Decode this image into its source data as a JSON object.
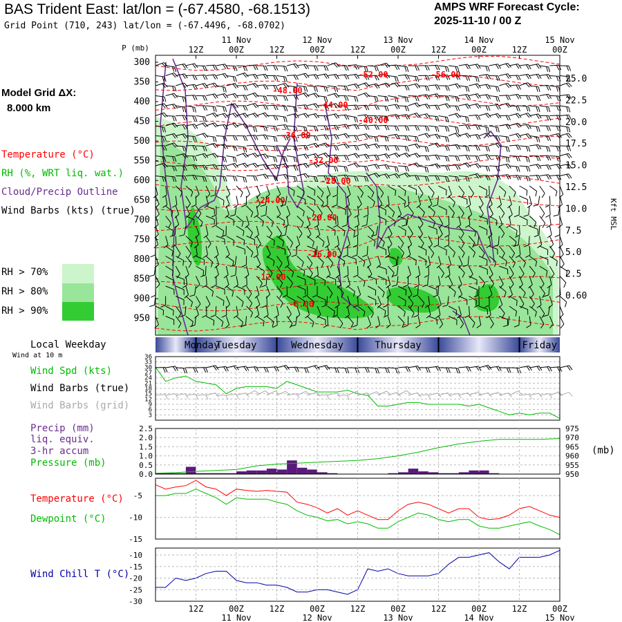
{
  "header": {
    "title": "BAS Trident East:  lat/lon = (-67.4580, -68.1513)",
    "grid_point": "Grid Point (710, 243) lat/lon = (-67.4496, -68.0702)",
    "cycle_label": "AMPS WRF Forecast Cycle:",
    "cycle_value": "2025-11-10 / 00  Z",
    "model_grid_label": "Model Grid ΔX:",
    "model_grid_value": "8.000 km"
  },
  "legend": {
    "temperature": "Temperature (°C)",
    "rh": "RH (%, WRT liq. wat.)",
    "cloud": "Cloud/Precip Outline",
    "wind_barbs": "Wind Barbs (kts) (true)",
    "rh70": "RH > 70%",
    "rh80": "RH > 80%",
    "rh90": "RH > 90%",
    "local_weekday": "Local Weekday",
    "wind10m": "Wind at 10 m",
    "wind_spd": "Wind Spd (kts)",
    "wind_barbs_true": "Wind Barbs (true)",
    "wind_barbs_grid": "Wind Barbs (grid)",
    "precip1": "Precip (mm)",
    "precip2": "liq. equiv.",
    "precip3": "3-hr accum",
    "pressure": "Pressure (mb)",
    "pressure_unit": "(mb)",
    "temp2": "Temperature (°C)",
    "dewpoint": "Dewpoint (°C)",
    "windchill": "Wind Chill T (°C)"
  },
  "colors": {
    "temperature": "#ff0000",
    "rh": "#00bb00",
    "cloud": "#6a2c8f",
    "windchill": "#0000aa",
    "grid_barbs": "#aaaaaa",
    "rh70": "#ccf5cc",
    "rh80": "#99e599",
    "rh90": "#33cc33",
    "precip": "#5a1a7a"
  },
  "chart_data": [
    {
      "type": "heatmap",
      "title": "Time-height cross section",
      "p_label": "P (mb)",
      "pressure_ticks": [
        "300",
        "350",
        "400",
        "450",
        "500",
        "550",
        "600",
        "650",
        "700",
        "750",
        "800",
        "850",
        "900",
        "950"
      ],
      "height_label": "Kft MSL",
      "height_ticks": [
        "25.0",
        "22.5",
        "20.0",
        "17.5",
        "15.0",
        "12.5",
        "10.0",
        "7.5",
        "5.0",
        "2.5",
        "0.60"
      ],
      "time_tick_labels": [
        "12Z",
        "00Z",
        "12Z",
        "00Z",
        "12Z",
        "00Z",
        "12Z",
        "00Z",
        "12Z",
        "00Z"
      ],
      "date_labels": [
        "11 Nov",
        "12 Nov",
        "13 Nov",
        "14 Nov",
        "15 Nov"
      ],
      "temperature_labels": [
        "-52.00",
        "-56.00",
        "-48.00",
        "-44.00",
        "-40.00",
        "-36.00",
        "-32.00",
        "-28.00",
        "-24.00",
        "-20.00",
        "-16.00",
        "-12.00",
        "-8.00"
      ],
      "weekdays": [
        "Monday",
        "Tuesday",
        "Wednesday",
        "Thursday",
        "Friday"
      ],
      "forecast_hours": [
        0,
        120
      ]
    },
    {
      "type": "line",
      "title": "Wind speed at 10 m",
      "y_ticks": [
        "36",
        "33",
        "30",
        "27",
        "24",
        "21",
        "18",
        "15",
        "12",
        "9",
        "6",
        "3"
      ],
      "x": [
        0,
        3,
        6,
        9,
        12,
        15,
        18,
        21,
        24,
        27,
        30,
        33,
        36,
        39,
        42,
        45,
        48,
        51,
        54,
        57,
        60,
        63,
        66,
        69,
        72,
        75,
        78,
        81,
        84,
        87,
        90,
        93,
        96,
        99,
        102,
        105,
        108,
        111,
        114,
        117,
        120
      ],
      "series": [
        {
          "name": "Wind Spd (kts)",
          "values": [
            30,
            22,
            24,
            25,
            22,
            21,
            20,
            15,
            18,
            19,
            19,
            19,
            18,
            22,
            20,
            18,
            16,
            16,
            16,
            17,
            15,
            14,
            8,
            8,
            9,
            10,
            10,
            9,
            9,
            9,
            9,
            8,
            9,
            7,
            5,
            3,
            4,
            3,
            4,
            4,
            1
          ]
        }
      ]
    },
    {
      "type": "bar",
      "title": "Precip and pressure",
      "y_ticks_left": [
        "2.5",
        "2.0",
        "1.5",
        "1.0",
        "0.5",
        "0.0"
      ],
      "y_ticks_right": [
        "975",
        "970",
        "965",
        "960",
        "955",
        "950"
      ],
      "precip_x": [
        3,
        6,
        9,
        12,
        15,
        18,
        21,
        24,
        27,
        30,
        33,
        36,
        39,
        42,
        45,
        48,
        51,
        54,
        57,
        60,
        63,
        66,
        69,
        72,
        75,
        78,
        81,
        84,
        87,
        90,
        93,
        96,
        99,
        102,
        105,
        108,
        111,
        114,
        117,
        120
      ],
      "precip_values": [
        0.05,
        0.05,
        0.05,
        0.4,
        0.05,
        0.05,
        0.05,
        0.05,
        0.15,
        0.2,
        0.2,
        0.3,
        0.25,
        0.75,
        0.35,
        0.25,
        0.1,
        0.05,
        0.02,
        0.02,
        0,
        0,
        0,
        0.05,
        0.1,
        0.3,
        0.15,
        0.1,
        0.05,
        0.05,
        0.1,
        0.2,
        0.2,
        0.05,
        0,
        0,
        0,
        0,
        0,
        0
      ],
      "pressure_x": [
        0,
        6,
        12,
        18,
        24,
        30,
        36,
        42,
        48,
        54,
        60,
        66,
        72,
        78,
        84,
        90,
        96,
        102,
        108,
        114,
        120
      ],
      "pressure_values": [
        950.5,
        950.8,
        951.5,
        952,
        952.5,
        954.5,
        955.5,
        956,
        956.5,
        957,
        957.5,
        958.5,
        960,
        962,
        964.5,
        966.5,
        968,
        969,
        969,
        969,
        969.5
      ]
    },
    {
      "type": "line",
      "title": "Temperature and Dewpoint",
      "y_ticks": [
        "-5",
        "-10",
        "-15"
      ],
      "x": [
        0,
        3,
        6,
        9,
        12,
        15,
        18,
        21,
        24,
        27,
        30,
        33,
        36,
        39,
        42,
        45,
        48,
        51,
        54,
        57,
        60,
        63,
        66,
        69,
        72,
        75,
        78,
        81,
        84,
        87,
        90,
        93,
        96,
        99,
        102,
        105,
        108,
        111,
        114,
        117,
        120
      ],
      "series": [
        {
          "name": "Temperature (°C)",
          "values": [
            -2.5,
            -3.5,
            -3,
            -2.7,
            -1.5,
            -3,
            -3.5,
            -5,
            -3.5,
            -3.8,
            -4,
            -3.8,
            -4,
            -4.2,
            -6.5,
            -7,
            -7.8,
            -9,
            -8,
            -9.5,
            -8.5,
            -9.5,
            -10.5,
            -10.5,
            -8.5,
            -7,
            -6.5,
            -7,
            -8,
            -9,
            -8,
            -8,
            -10,
            -10.5,
            -10.3,
            -9.5,
            -8,
            -7.5,
            -8.5,
            -9.5,
            -10
          ]
        },
        {
          "name": "Dewpoint (°C)",
          "values": [
            -5,
            -5,
            -4.5,
            -4.5,
            -3.5,
            -4.5,
            -5.5,
            -7,
            -5.5,
            -5.8,
            -5.8,
            -5.8,
            -6.5,
            -7,
            -8.5,
            -9.5,
            -10,
            -10.8,
            -10.5,
            -11.5,
            -11,
            -11.5,
            -12.5,
            -12.5,
            -11,
            -10,
            -9,
            -9.5,
            -10.5,
            -11,
            -10.5,
            -10.5,
            -12,
            -12.5,
            -12.5,
            -12,
            -11.5,
            -11,
            -12,
            -12.8,
            -14
          ]
        }
      ]
    },
    {
      "type": "line",
      "title": "Wind Chill",
      "y_ticks": [
        "-10",
        "-15",
        "-20",
        "-25",
        "-30"
      ],
      "x": [
        0,
        3,
        6,
        9,
        12,
        15,
        18,
        21,
        24,
        27,
        30,
        33,
        36,
        39,
        42,
        45,
        48,
        51,
        54,
        57,
        60,
        63,
        66,
        69,
        72,
        75,
        78,
        81,
        84,
        87,
        90,
        93,
        96,
        99,
        102,
        105,
        108,
        111,
        114,
        117,
        120
      ],
      "series": [
        {
          "name": "Wind Chill T (°C)",
          "values": [
            -24,
            -24,
            -20,
            -21,
            -20,
            -18,
            -17,
            -17,
            -21,
            -22,
            -22,
            -23,
            -23,
            -24,
            -26,
            -26,
            -25,
            -25,
            -26,
            -27,
            -25,
            -16,
            -17,
            -16,
            -18,
            -19,
            -19,
            -19,
            -18,
            -14,
            -11,
            -11,
            -10,
            -9,
            -13,
            -16,
            -11,
            -11,
            -11,
            -10,
            -8
          ]
        }
      ]
    }
  ]
}
